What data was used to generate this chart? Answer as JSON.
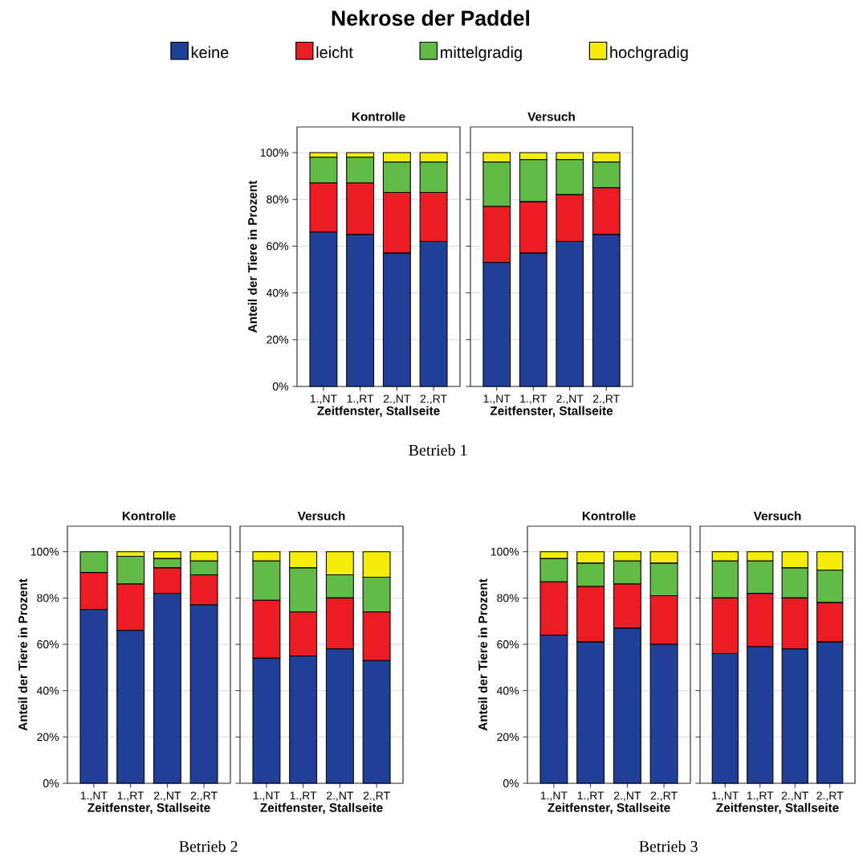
{
  "chart_data": [
    {
      "type": "bar",
      "stacked": true,
      "legend_title": "Nekrose der Paddel",
      "legend": "top",
      "title": "Kontrolle",
      "xlabel": "Zeitfenster, Stallseite",
      "ylabel": "Anteil der Tiere in Prozent",
      "annotations": [
        "Betrieb 1"
      ],
      "categories": [
        "1.,NT",
        "1.,RT",
        "2.,NT",
        "2.,RT"
      ],
      "ylim": [
        0,
        111
      ],
      "yticks": [
        {
          "value": 0,
          "label": "0%"
        },
        {
          "value": 20,
          "label": "20%"
        },
        {
          "value": 40,
          "label": "40%"
        },
        {
          "value": 60,
          "label": "60%"
        },
        {
          "value": 80,
          "label": "80%"
        },
        {
          "value": 100,
          "label": "100%"
        }
      ],
      "grid": "y",
      "series": [
        {
          "name": "keine",
          "color": "#203f96",
          "values": [
            66,
            65,
            57,
            62
          ]
        },
        {
          "name": "leicht",
          "color": "#ec1c24",
          "values": [
            21,
            22,
            26,
            21
          ]
        },
        {
          "name": "mittelgradig",
          "color": "#62bb46",
          "values": [
            11,
            11,
            13,
            13
          ]
        },
        {
          "name": "hochgradig",
          "color": "#f4ec0a",
          "values": [
            2,
            2,
            4,
            4
          ]
        }
      ]
    },
    {
      "type": "bar",
      "stacked": true,
      "title": "Versuch",
      "xlabel": "Zeitfenster, Stallseite",
      "tick_labels": "x",
      "categories": [
        "1.,NT",
        "1.,RT",
        "2.,NT",
        "2.,RT"
      ],
      "ylim": [
        0,
        111
      ],
      "yticks": [
        0,
        20,
        40,
        60,
        80,
        100
      ],
      "grid": "y",
      "series": [
        {
          "color": "#203f96",
          "values": [
            53,
            57,
            62,
            65
          ]
        },
        {
          "color": "#ec1c24",
          "values": [
            24,
            22,
            20,
            20
          ]
        },
        {
          "color": "#62bb46",
          "values": [
            19,
            18,
            15,
            11
          ]
        },
        {
          "color": "#f4ec0a",
          "values": [
            4,
            3,
            3,
            4
          ]
        }
      ]
    },
    {
      "type": "bar",
      "stacked": true,
      "title": "Kontrolle",
      "xlabel": "Zeitfenster, Stallseite",
      "ylabel": "Anteil der Tiere in Prozent",
      "annotations": [
        "Betrieb 2"
      ],
      "categories": [
        "1.,NT",
        "1.,RT",
        "2.,NT",
        "2.,RT"
      ],
      "ylim": [
        0,
        111
      ],
      "yticks": [
        {
          "value": 0,
          "label": "0%"
        },
        {
          "value": 20,
          "label": "20%"
        },
        {
          "value": 40,
          "label": "40%"
        },
        {
          "value": 60,
          "label": "60%"
        },
        {
          "value": 80,
          "label": "80%"
        },
        {
          "value": 100,
          "label": "100%"
        }
      ],
      "grid": "y",
      "series": [
        {
          "color": "#203f96",
          "values": [
            75,
            66,
            82,
            77
          ]
        },
        {
          "color": "#ec1c24",
          "values": [
            16,
            20,
            11,
            13
          ]
        },
        {
          "color": "#62bb46",
          "values": [
            9,
            12,
            4,
            6
          ]
        },
        {
          "color": "#f4ec0a",
          "values": [
            0,
            2,
            3,
            4
          ]
        }
      ]
    },
    {
      "type": "bar",
      "stacked": true,
      "title": "Versuch",
      "xlabel": "Zeitfenster, Stallseite",
      "tick_labels": "x",
      "categories": [
        "1.,NT",
        "1.,RT",
        "2.,NT",
        "2.,RT"
      ],
      "ylim": [
        0,
        111
      ],
      "yticks": [
        0,
        20,
        40,
        60,
        80,
        100
      ],
      "grid": "y",
      "series": [
        {
          "color": "#203f96",
          "values": [
            54,
            55,
            58,
            53
          ]
        },
        {
          "color": "#ec1c24",
          "values": [
            25,
            19,
            22,
            21
          ]
        },
        {
          "color": "#62bb46",
          "values": [
            17,
            19,
            10,
            15
          ]
        },
        {
          "color": "#f4ec0a",
          "values": [
            4,
            7,
            10,
            11
          ]
        }
      ]
    },
    {
      "type": "bar",
      "stacked": true,
      "title": "Kontrolle",
      "xlabel": "Zeitfenster, Stallseite",
      "ylabel": "Anteil der Tiere in Prozent",
      "annotations": [
        "Betrieb 3"
      ],
      "categories": [
        "1.,NT",
        "1.,RT",
        "2.,NT",
        "2.,RT"
      ],
      "ylim": [
        0,
        111
      ],
      "yticks": [
        {
          "value": 0,
          "label": "0%"
        },
        {
          "value": 20,
          "label": "20%"
        },
        {
          "value": 40,
          "label": "40%"
        },
        {
          "value": 60,
          "label": "60%"
        },
        {
          "value": 80,
          "label": "80%"
        },
        {
          "value": 100,
          "label": "100%"
        }
      ],
      "grid": "y",
      "series": [
        {
          "color": "#203f96",
          "values": [
            64,
            61,
            67,
            60
          ]
        },
        {
          "color": "#ec1c24",
          "values": [
            23,
            24,
            19,
            21
          ]
        },
        {
          "color": "#62bb46",
          "values": [
            10,
            10,
            10,
            14
          ]
        },
        {
          "color": "#f4ec0a",
          "values": [
            3,
            5,
            4,
            5
          ]
        }
      ]
    },
    {
      "type": "bar",
      "stacked": true,
      "title": "Versuch",
      "xlabel": "Zeitfenster, Stallseite",
      "tick_labels": "x",
      "categories": [
        "1.,NT",
        "1.,RT",
        "2.,NT",
        "2.,RT"
      ],
      "ylim": [
        0,
        111
      ],
      "yticks": [
        0,
        20,
        40,
        60,
        80,
        100
      ],
      "grid": "y",
      "series": [
        {
          "color": "#203f96",
          "values": [
            56,
            59,
            58,
            61
          ]
        },
        {
          "color": "#ec1c24",
          "values": [
            24,
            23,
            22,
            17
          ]
        },
        {
          "color": "#62bb46",
          "values": [
            16,
            14,
            13,
            14
          ]
        },
        {
          "color": "#f4ec0a",
          "values": [
            4,
            4,
            7,
            8
          ]
        }
      ]
    }
  ]
}
